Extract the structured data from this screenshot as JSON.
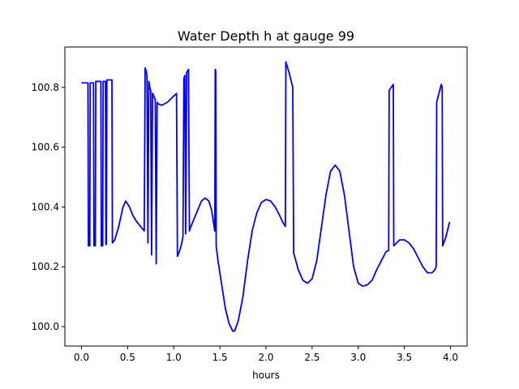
{
  "chart_data": {
    "type": "line",
    "title": "Water Depth h at gauge 99",
    "xlabel": "hours",
    "ylabel": "",
    "xlim": [
      -0.18,
      4.18
    ],
    "ylim": [
      99.935,
      100.935
    ],
    "xticks": [
      0.0,
      0.5,
      1.0,
      1.5,
      2.0,
      2.5,
      3.0,
      3.5,
      4.0
    ],
    "xtick_labels": [
      "0.0",
      "0.5",
      "1.0",
      "1.5",
      "2.0",
      "2.5",
      "3.0",
      "3.5",
      "4.0"
    ],
    "yticks": [
      100.0,
      100.2,
      100.4,
      100.6,
      100.8
    ],
    "ytick_labels": [
      "100.0",
      "100.2",
      "100.4",
      "100.6",
      "100.8"
    ],
    "grid": false,
    "series": [
      {
        "color": "#0000ff",
        "x": [
          0.0,
          0.07,
          0.075,
          0.09,
          0.095,
          0.13,
          0.135,
          0.15,
          0.155,
          0.21,
          0.215,
          0.23,
          0.235,
          0.26,
          0.265,
          0.27,
          0.275,
          0.33,
          0.335,
          0.36,
          0.4,
          0.45,
          0.48,
          0.52,
          0.56,
          0.6,
          0.64,
          0.68,
          0.69,
          0.7,
          0.71,
          0.72,
          0.73,
          0.74,
          0.75,
          0.76,
          0.77,
          0.78,
          0.79,
          0.8,
          0.81,
          0.82,
          0.83,
          0.87,
          0.93,
          0.98,
          1.03,
          1.04,
          1.06,
          1.08,
          1.1,
          1.11,
          1.12,
          1.13,
          1.14,
          1.15,
          1.16,
          1.17,
          1.18,
          1.22,
          1.26,
          1.3,
          1.34,
          1.38,
          1.41,
          1.43,
          1.445,
          1.45,
          1.455,
          1.46,
          1.48,
          1.52,
          1.56,
          1.6,
          1.64,
          1.66,
          1.7,
          1.75,
          1.8,
          1.85,
          1.9,
          1.95,
          2.0,
          2.05,
          2.1,
          2.15,
          2.18,
          2.21,
          2.215,
          2.22,
          2.25,
          2.29,
          2.3,
          2.31,
          2.35,
          2.4,
          2.45,
          2.5,
          2.55,
          2.6,
          2.65,
          2.7,
          2.75,
          2.8,
          2.85,
          2.9,
          2.95,
          3.0,
          3.05,
          3.1,
          3.15,
          3.2,
          3.25,
          3.3,
          3.33,
          3.335,
          3.38,
          3.385,
          3.4,
          3.45,
          3.5,
          3.55,
          3.6,
          3.65,
          3.7,
          3.75,
          3.8,
          3.83,
          3.845,
          3.85,
          3.9,
          3.91,
          3.915,
          3.95,
          3.99
        ],
        "y": [
          100.815,
          100.815,
          100.27,
          100.27,
          100.815,
          100.815,
          100.27,
          100.27,
          100.82,
          100.82,
          100.27,
          100.27,
          100.82,
          100.82,
          100.275,
          100.275,
          100.825,
          100.825,
          100.28,
          100.29,
          100.33,
          100.4,
          100.42,
          100.4,
          100.37,
          100.35,
          100.335,
          100.32,
          100.865,
          100.855,
          100.84,
          100.28,
          100.82,
          100.8,
          100.79,
          100.24,
          100.78,
          100.775,
          100.765,
          100.76,
          100.21,
          100.75,
          100.745,
          100.74,
          100.75,
          100.765,
          100.78,
          100.235,
          100.25,
          100.27,
          100.3,
          100.83,
          100.84,
          100.31,
          100.85,
          100.855,
          100.86,
          100.32,
          100.33,
          100.36,
          100.39,
          100.42,
          100.43,
          100.42,
          100.39,
          100.35,
          100.32,
          100.86,
          100.855,
          100.27,
          100.22,
          100.14,
          100.06,
          100.01,
          99.985,
          99.985,
          100.02,
          100.1,
          100.22,
          100.32,
          100.38,
          100.415,
          100.425,
          100.42,
          100.4,
          100.37,
          100.35,
          100.335,
          100.885,
          100.88,
          100.85,
          100.8,
          100.245,
          100.235,
          100.19,
          100.155,
          100.145,
          100.16,
          100.22,
          100.33,
          100.44,
          100.52,
          100.54,
          100.52,
          100.44,
          100.32,
          100.2,
          100.145,
          100.135,
          100.14,
          100.155,
          100.19,
          100.22,
          100.25,
          100.255,
          100.79,
          100.81,
          100.27,
          100.275,
          100.29,
          100.29,
          100.28,
          100.26,
          100.23,
          100.2,
          100.18,
          100.18,
          100.19,
          100.2,
          100.75,
          100.81,
          100.8,
          100.27,
          100.3,
          100.35
        ]
      }
    ]
  }
}
